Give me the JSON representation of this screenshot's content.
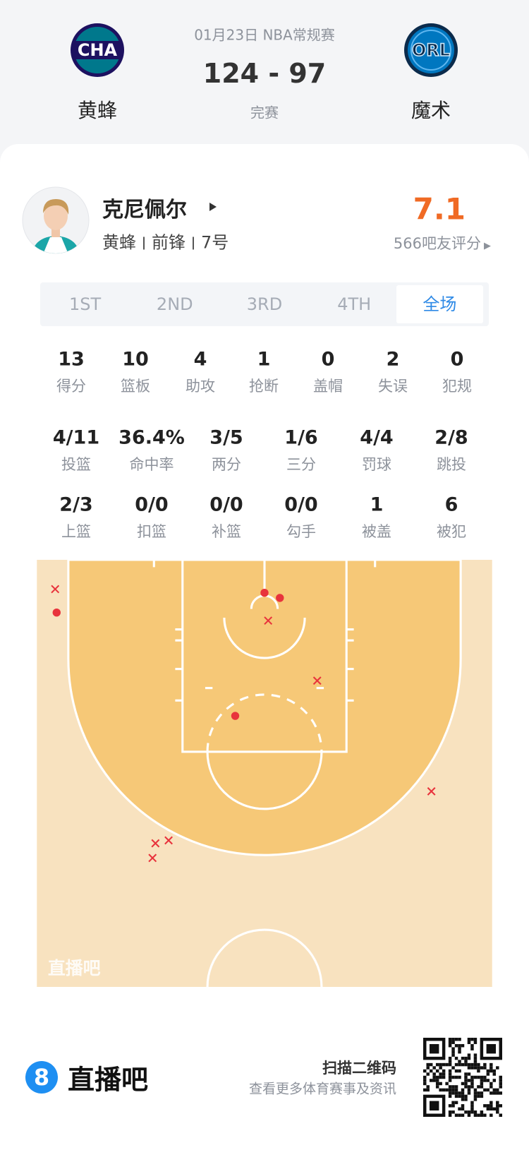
{
  "header": {
    "date": "01月23日 NBA常规赛",
    "score": "124 - 97",
    "status": "完赛",
    "home": {
      "logo": "CHA",
      "name": "黄蜂"
    },
    "away": {
      "logo": "ORL",
      "name": "魔术"
    }
  },
  "player": {
    "name": "克尼佩尔",
    "team": "黄蜂",
    "position": "前锋",
    "number": "7号",
    "rating": "7.1",
    "rating_label": "566吧友评分"
  },
  "tabs": [
    "1ST",
    "2ND",
    "3RD",
    "4TH",
    "全场"
  ],
  "stats": [
    [
      {
        "value": "13",
        "label": "得分"
      },
      {
        "value": "10",
        "label": "篮板"
      },
      {
        "value": "4",
        "label": "助攻"
      },
      {
        "value": "1",
        "label": "抢断"
      },
      {
        "value": "0",
        "label": "盖帽"
      },
      {
        "value": "2",
        "label": "失误"
      },
      {
        "value": "0",
        "label": "犯规"
      }
    ],
    [
      {
        "value": "4/11",
        "label": "投篮"
      },
      {
        "value": "36.4%",
        "label": "命中率"
      },
      {
        "value": "3/5",
        "label": "两分"
      },
      {
        "value": "1/6",
        "label": "三分"
      },
      {
        "value": "4/4",
        "label": "罚球"
      },
      {
        "value": "2/8",
        "label": "跳投"
      }
    ],
    [
      {
        "value": "2/3",
        "label": "上篮"
      },
      {
        "value": "0/0",
        "label": "扣篮"
      },
      {
        "value": "0/0",
        "label": "补篮"
      },
      {
        "value": "0/0",
        "label": "勾手"
      },
      {
        "value": "1",
        "label": "被盖"
      },
      {
        "value": "6",
        "label": "被犯"
      }
    ]
  ],
  "court": {
    "watermark": "直播吧"
  },
  "footer": {
    "brand_icon": "8",
    "brand": "直播吧",
    "scan": "扫描二维码",
    "tagline": "查看更多体育赛事及资讯"
  }
}
